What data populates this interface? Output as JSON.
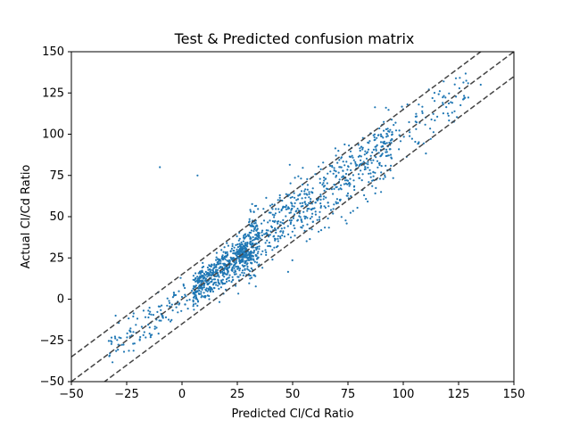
{
  "chart_data": {
    "type": "scatter",
    "title": "Test & Predicted confusion matrix",
    "xlabel": "Predicted Cl/Cd Ratio",
    "ylabel": "Actual Cl/Cd Ratio",
    "xlim": [
      -50,
      150
    ],
    "ylim": [
      -50,
      150
    ],
    "xticks": [
      -50,
      -25,
      0,
      25,
      50,
      75,
      100,
      125,
      150
    ],
    "yticks": [
      -50,
      -25,
      0,
      25,
      50,
      75,
      100,
      125,
      150
    ],
    "xtick_labels": [
      "−50",
      "−25",
      "0",
      "25",
      "50",
      "75",
      "100",
      "125",
      "150"
    ],
    "ytick_labels": [
      "−50",
      "−25",
      "0",
      "25",
      "50",
      "75",
      "100",
      "125",
      "150"
    ],
    "grid": false,
    "point_color": "#1f77b4",
    "line_color": "#444444",
    "reference_lines": [
      {
        "slope": 1,
        "intercept": 15,
        "style": "dashed"
      },
      {
        "slope": 1,
        "intercept": 0,
        "style": "dashed"
      },
      {
        "slope": 1,
        "intercept": -15,
        "style": "dashed"
      }
    ],
    "outliers": [
      [
        -10,
        80
      ],
      [
        7,
        75
      ],
      [
        135,
        130
      ],
      [
        -30,
        -10
      ]
    ],
    "sample": {
      "count": 1500,
      "relation": "y ≈ x",
      "x_range": [
        -35,
        130
      ],
      "spread": 10
    }
  }
}
